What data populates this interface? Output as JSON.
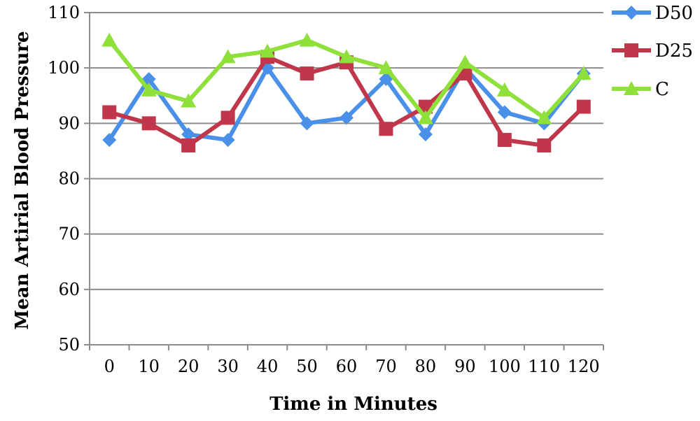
{
  "chart_data": {
    "type": "line",
    "xlabel": "Time in Minutes",
    "ylabel": "Mean Artirial Blood Pressure",
    "categories": [
      "0",
      "10",
      "20",
      "30",
      "40",
      "50",
      "60",
      "70",
      "80",
      "90",
      "100",
      "110",
      "120"
    ],
    "ylim": [
      50,
      110
    ],
    "yticks": [
      50,
      60,
      70,
      80,
      90,
      100,
      110
    ],
    "grid": true,
    "legend_position": "top-right",
    "series": [
      {
        "name": "D50",
        "color": "#4A90E8",
        "marker": "diamond",
        "values": [
          87,
          98,
          88,
          87,
          100,
          90,
          91,
          98,
          88,
          100,
          92,
          90,
          99
        ]
      },
      {
        "name": "D25",
        "color": "#C0364A",
        "marker": "square",
        "values": [
          92,
          90,
          86,
          91,
          102,
          99,
          101,
          89,
          93,
          99,
          87,
          86,
          93
        ]
      },
      {
        "name": "C",
        "color": "#8FE03A",
        "marker": "triangle",
        "values": [
          105,
          96,
          94,
          102,
          103,
          105,
          102,
          100,
          91,
          101,
          96,
          91,
          99
        ]
      }
    ]
  }
}
